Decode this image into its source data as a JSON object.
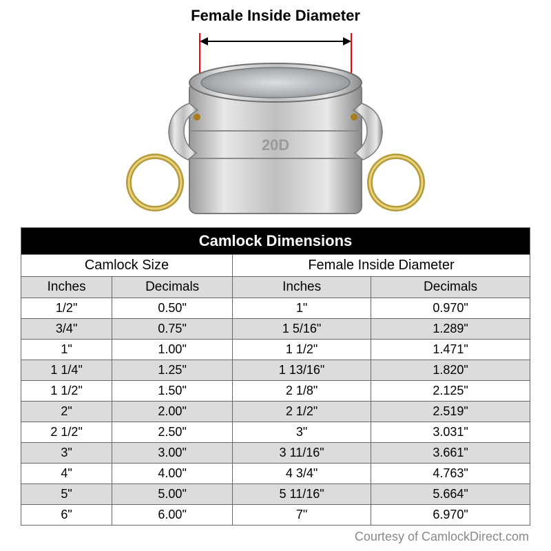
{
  "diagram": {
    "label": "Female Inside Diameter",
    "label_fontsize": 22,
    "label_weight": "bold",
    "label_color": "#000000",
    "callout_line_color": "#ff0000",
    "callout_line_width": 2,
    "arrow_color": "#000000",
    "arrow_width": 2,
    "coupling": {
      "body_fill": "#c8c8c8",
      "body_stroke": "#8a8a8a",
      "inner_fill": "#a9adb0",
      "inner_highlight": "#e6e8ea",
      "ring_fill": "none",
      "ring_stroke": "#b59a3a",
      "ring_stroke_width": 8,
      "pin_color": "#a87d1a",
      "watermark_text": "20D",
      "watermark_color": "#9a9a9a"
    }
  },
  "table": {
    "title": "Camlock Dimensions",
    "group_headers": [
      "Camlock Size",
      "Female Inside Diameter"
    ],
    "columns": [
      "Inches",
      "Decimals",
      "Inches",
      "Decimals"
    ],
    "rows": [
      [
        "1/2\"",
        "0.50\"",
        "1\"",
        "0.970\""
      ],
      [
        "3/4\"",
        "0.75\"",
        "1 5/16\"",
        "1.289\""
      ],
      [
        "1\"",
        "1.00\"",
        "1 1/2\"",
        "1.471\""
      ],
      [
        "1 1/4\"",
        "1.25\"",
        "1 13/16\"",
        "1.820\""
      ],
      [
        "1 1/2\"",
        "1.50\"",
        "2 1/8\"",
        "2.125\""
      ],
      [
        "2\"",
        "2.00\"",
        "2 1/2\"",
        "2.519\""
      ],
      [
        "2 1/2\"",
        "2.50\"",
        "3\"",
        "3.031\""
      ],
      [
        "3\"",
        "3.00\"",
        "3 11/16\"",
        "3.661\""
      ],
      [
        "4\"",
        "4.00\"",
        "4 3/4\"",
        "4.763\""
      ],
      [
        "5\"",
        "5.00\"",
        "5 11/16\"",
        "5.664\""
      ],
      [
        "6\"",
        "6.00\"",
        "7\"",
        "6.970\""
      ]
    ],
    "title_bg": "#000000",
    "title_fg": "#ffffff",
    "title_fontsize": 22,
    "header_bg": "#dcdcdc",
    "row_zebra_bg": "#dcdcdc",
    "row_bg": "#ffffff",
    "border_color": "#666666",
    "cell_fontsize": 18,
    "col_widths_pct": [
      25,
      25,
      25,
      25
    ]
  },
  "credit": {
    "text": "Courtesy of CamlockDirect.com",
    "color": "#888888",
    "fontsize": 18
  }
}
